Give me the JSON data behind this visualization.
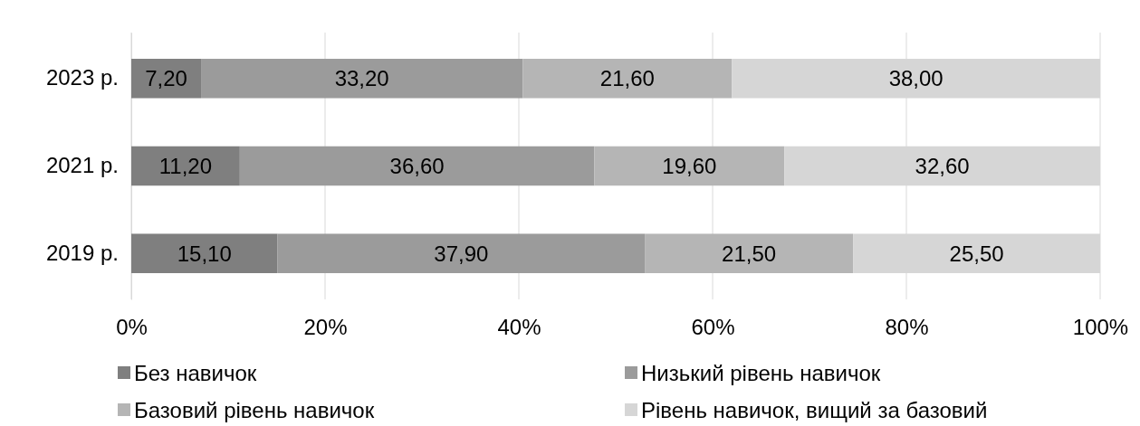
{
  "chart_data": {
    "type": "bar",
    "orientation": "horizontal",
    "stacked": true,
    "categories": [
      "2023 р.",
      "2021 р.",
      "2019 р."
    ],
    "series": [
      {
        "name": "Без навичок",
        "color": "#7f7f7f",
        "values": [
          7.2,
          11.2,
          15.1
        ],
        "value_labels": [
          "7,20",
          "11,20",
          "15,10"
        ]
      },
      {
        "name": "Низький рівень навичок",
        "color": "#9b9b9b",
        "values": [
          33.2,
          36.6,
          37.9
        ],
        "value_labels": [
          "33,20",
          "36,60",
          "37,90"
        ]
      },
      {
        "name": "Базовий рівень навичок",
        "color": "#b5b5b5",
        "values": [
          21.6,
          19.6,
          21.5
        ],
        "value_labels": [
          "21,60",
          "19,60",
          "21,50"
        ]
      },
      {
        "name": "Рівень навичок, вищий за базовий",
        "color": "#d6d6d6",
        "values": [
          38.0,
          32.6,
          25.5
        ],
        "value_labels": [
          "38,00",
          "32,60",
          "25,50"
        ]
      }
    ],
    "xlim": [
      0,
      100
    ],
    "xticks": [
      {
        "value": 0,
        "label": "0%"
      },
      {
        "value": 20,
        "label": "20%"
      },
      {
        "value": 40,
        "label": "40%"
      },
      {
        "value": 60,
        "label": "60%"
      },
      {
        "value": 80,
        "label": "80%"
      },
      {
        "value": 100,
        "label": "100%"
      }
    ],
    "grid": "x",
    "legend": "bottom"
  }
}
